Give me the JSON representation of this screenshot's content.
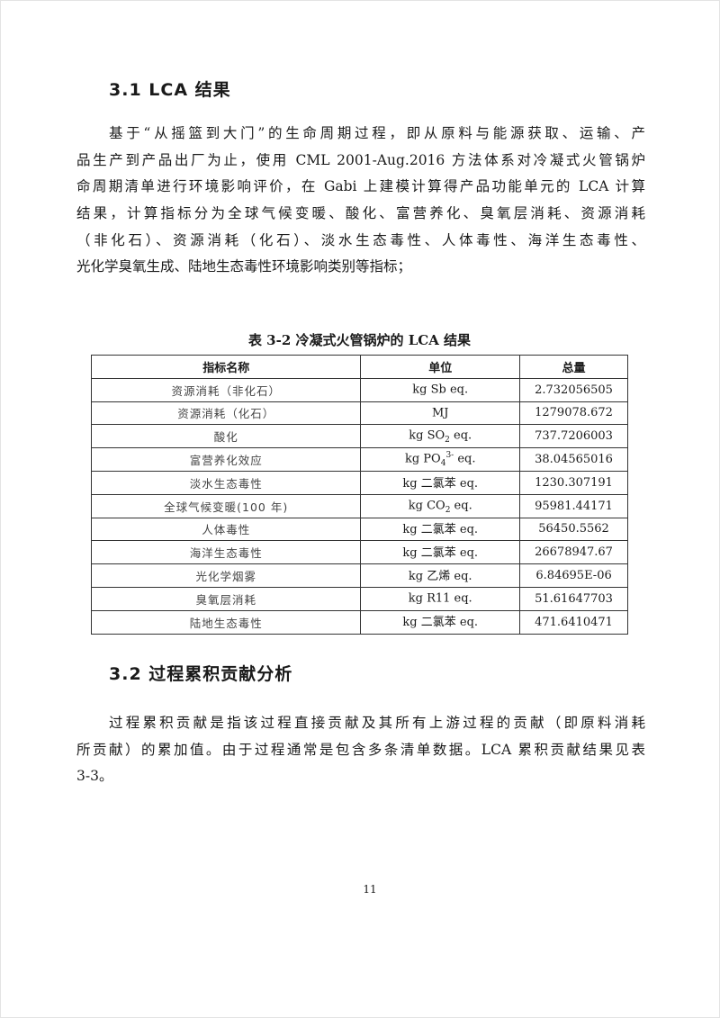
{
  "section1": {
    "heading": "3.1 LCA 结果",
    "lines": [
      "基于“从摇篮到大门”的生命周期过程，即从原料与能源获取、运输、产",
      "品生产到产品出厂为止，使用 CML 2001-Aug.2016 方法体系对冷凝式火管锅炉",
      "命周期清单进行环境影响评价，在 Gabi 上建模计算得产品功能单元的 LCA 计算",
      "结果，计算指标分为全球气候变暖、酸化、富营养化、臭氧层消耗、资源消耗",
      "（非化石）、资源消耗（化石）、淡水生态毒性、人体毒性、海洋生态毒性、",
      "光化学臭氧生成、陆地生态毒性环境影响类别等指标；"
    ]
  },
  "table": {
    "caption": "表 3-2 冷凝式火管锅炉的 LCA 结果",
    "headers": [
      "指标名称",
      "单位",
      "总量"
    ],
    "rows": [
      {
        "name": "资源消耗（非化石）",
        "unit": {
          "main": "kg Sb eq.",
          "sub": "",
          "sup": "",
          "tail": ""
        },
        "total": "2.732056505"
      },
      {
        "name": "资源消耗（化石）",
        "unit": {
          "main": "MJ",
          "sub": "",
          "sup": "",
          "tail": ""
        },
        "total": "1279078.672"
      },
      {
        "name": "酸化",
        "unit": {
          "main": "kg SO",
          "sub": "2",
          "sup": "",
          "tail": " eq."
        },
        "total": "737.7206003"
      },
      {
        "name": "富营养化效应",
        "unit": {
          "main": "kg PO",
          "sub": "4",
          "sup": "3-",
          "tail": " eq."
        },
        "total": "38.04565016"
      },
      {
        "name": "淡水生态毒性",
        "unit": {
          "main": "kg 二氯苯 eq.",
          "sub": "",
          "sup": "",
          "tail": ""
        },
        "total": "1230.307191"
      },
      {
        "name": "全球气候变暖(100 年)",
        "unit": {
          "main": "kg CO",
          "sub": "2",
          "sup": "",
          "tail": " eq."
        },
        "total": "95981.44171"
      },
      {
        "name": "人体毒性",
        "unit": {
          "main": "kg 二氯苯 eq.",
          "sub": "",
          "sup": "",
          "tail": ""
        },
        "total": "56450.5562"
      },
      {
        "name": "海洋生态毒性",
        "unit": {
          "main": "kg  二氯苯 eq.",
          "sub": "",
          "sup": "",
          "tail": ""
        },
        "total": "26678947.67"
      },
      {
        "name": "光化学烟雾",
        "unit": {
          "main": "kg  乙烯 eq.",
          "sub": "",
          "sup": "",
          "tail": ""
        },
        "total": "6.84695E-06"
      },
      {
        "name": "臭氧层消耗",
        "unit": {
          "main": "kg R11 eq.",
          "sub": "",
          "sup": "",
          "tail": ""
        },
        "total": "51.61647703"
      },
      {
        "name": "陆地生态毒性",
        "unit": {
          "main": "kg  二氯苯 eq.",
          "sub": "",
          "sup": "",
          "tail": ""
        },
        "total": "471.6410471"
      }
    ]
  },
  "section2": {
    "heading": "3.2 过程累积贡献分析",
    "lines": [
      "过程累积贡献是指该过程直接贡献及其所有上游过程的贡献（即原料消耗",
      "所贡献）的累加值。由于过程通常是包含多条清单数据。LCA 累积贡献结果见表",
      "3-3。"
    ]
  },
  "page_number": "11"
}
